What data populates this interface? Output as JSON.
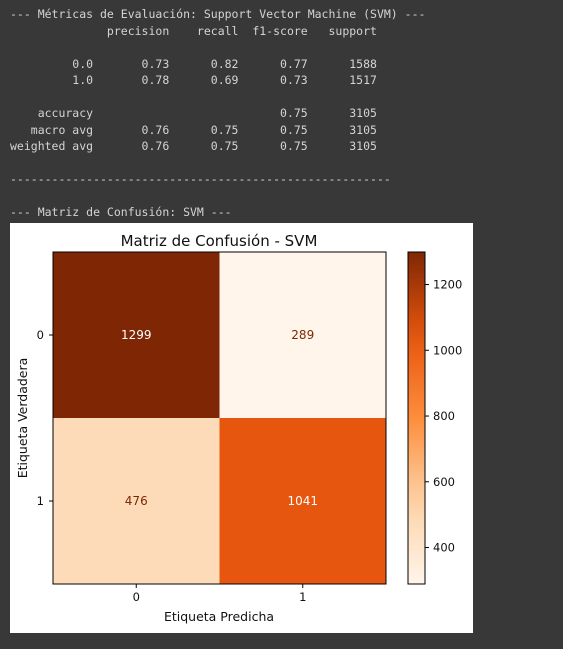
{
  "console": {
    "lines": [
      "--- Métricas de Evaluación: Support Vector Machine (SVM) ---",
      "              precision    recall  f1-score   support",
      "",
      "         0.0       0.73      0.82      0.77      1588",
      "         1.0       0.78      0.69      0.73      1517",
      "",
      "    accuracy                           0.75      3105",
      "   macro avg       0.76      0.75      0.75      3105",
      "weighted avg       0.76      0.75      0.75      3105",
      "",
      "-------------------------------------------------------",
      "",
      "--- Matriz de Confusión: SVM ---"
    ]
  },
  "chart_data": {
    "type": "heatmap",
    "title": "Matriz de Confusión - SVM",
    "xlabel": "Etiqueta Predicha",
    "ylabel": "Etiqueta Verdadera",
    "x_ticks": [
      "0",
      "1"
    ],
    "y_ticks": [
      "0",
      "1"
    ],
    "matrix": [
      [
        1299,
        289
      ],
      [
        476,
        1041
      ]
    ],
    "cell_labels": [
      [
        "1299",
        "289"
      ],
      [
        "476",
        "1041"
      ]
    ],
    "colormap": "Oranges",
    "colorbar": {
      "ticks": [
        400,
        600,
        800,
        1000,
        1200
      ],
      "tick_labels": [
        "400",
        "600",
        "800",
        "1000",
        "1200"
      ],
      "range": [
        289,
        1299
      ]
    },
    "colors": {
      "low": "#fff5eb",
      "mid_low": "#fdd2a6",
      "mid": "#fd8d3c",
      "mid_high": "#e6550d",
      "high": "#7f2704",
      "label_on_dark": "#ffffff",
      "label_on_light": "#7f2704"
    }
  }
}
